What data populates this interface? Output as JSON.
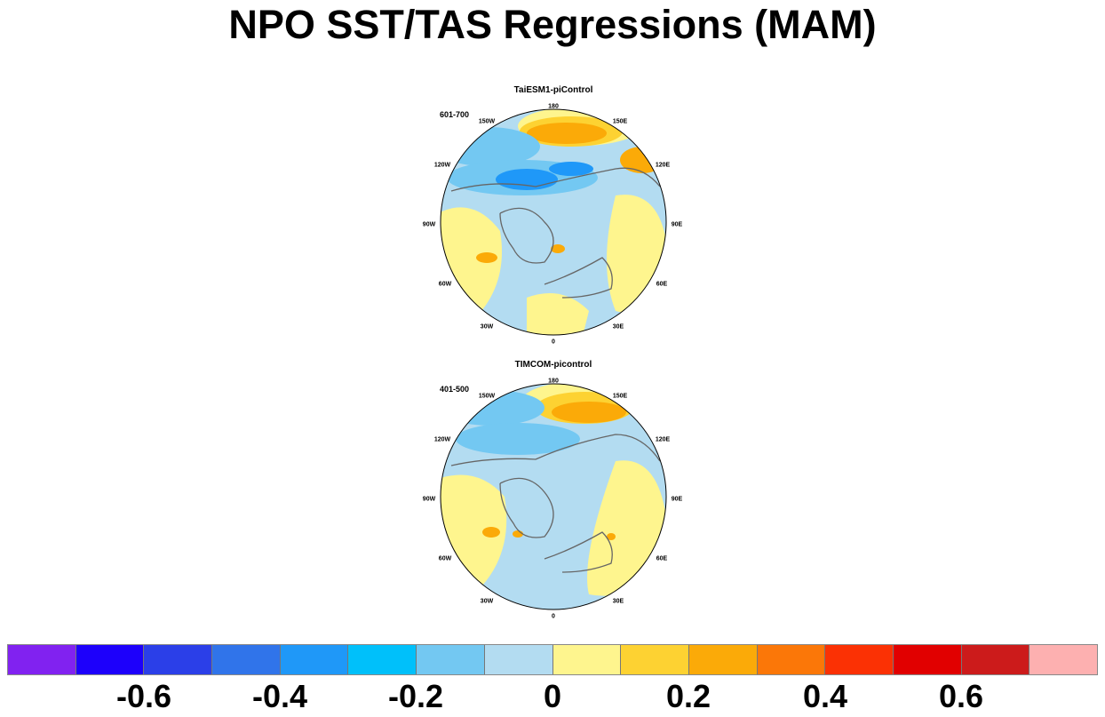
{
  "title": "NPO SST/TAS Regressions (MAM)",
  "panels": [
    {
      "title": "TaiESM1-piControl",
      "period": "601-700",
      "lon_labels": [
        "180",
        "150E",
        "120E",
        "90E",
        "60E",
        "30E",
        "0",
        "30W",
        "60W",
        "90W",
        "120W",
        "150W"
      ]
    },
    {
      "title": "TIMCOM-picontrol",
      "period": "401-500",
      "lon_labels": [
        "180",
        "150E",
        "120E",
        "90E",
        "60E",
        "30E",
        "0",
        "30W",
        "60W",
        "90W",
        "120W",
        "150W"
      ]
    }
  ],
  "colorbar": {
    "colors": [
      "#8122f0",
      "#1d00fb",
      "#2b3fe8",
      "#3074ea",
      "#1f98f8",
      "#00c0fa",
      "#73c8f2",
      "#b3dcf1",
      "#fef58e",
      "#fdd232",
      "#fbaa08",
      "#fb7708",
      "#fb3104",
      "#e10000",
      "#cc1b1b",
      "#fdb0b0"
    ],
    "labels": [
      "-0.6",
      "-0.4",
      "-0.2",
      "0",
      "0.2",
      "0.4",
      "0.6"
    ]
  }
}
